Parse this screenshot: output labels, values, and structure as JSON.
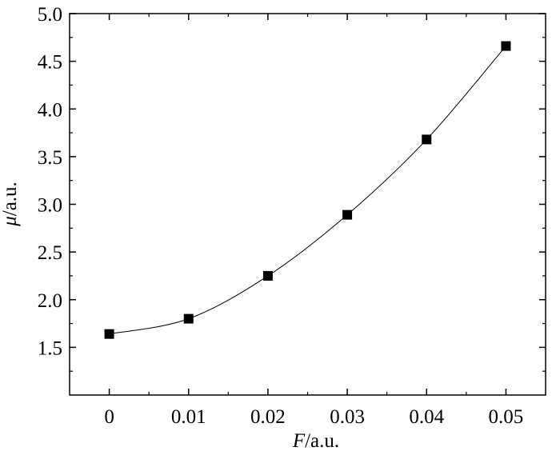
{
  "chart_data": {
    "type": "line",
    "xlabel_symbol": "F",
    "xlabel_unit": "/a.u.",
    "ylabel_symbol": "μ",
    "ylabel_unit": "/a.u.",
    "xlim": [
      -0.005,
      0.055
    ],
    "ylim": [
      1.0,
      5.0
    ],
    "x_ticks": [
      0,
      0.01,
      0.02,
      0.03,
      0.04,
      0.05
    ],
    "x_tick_labels": [
      "0",
      "0.01",
      "0.02",
      "0.03",
      "0.04",
      "0.05"
    ],
    "y_ticks": [
      1.5,
      2.0,
      2.5,
      3.0,
      3.5,
      4.0,
      4.5,
      5.0
    ],
    "y_tick_labels": [
      "1.5",
      "2.0",
      "2.5",
      "3.0",
      "3.5",
      "4.0",
      "4.5",
      "5.0"
    ],
    "grid": false,
    "series": [
      {
        "marker": "square",
        "x": [
          0,
          0.01,
          0.02,
          0.03,
          0.04,
          0.05
        ],
        "y": [
          1.64,
          1.8,
          2.25,
          2.89,
          3.68,
          4.66
        ]
      }
    ]
  }
}
